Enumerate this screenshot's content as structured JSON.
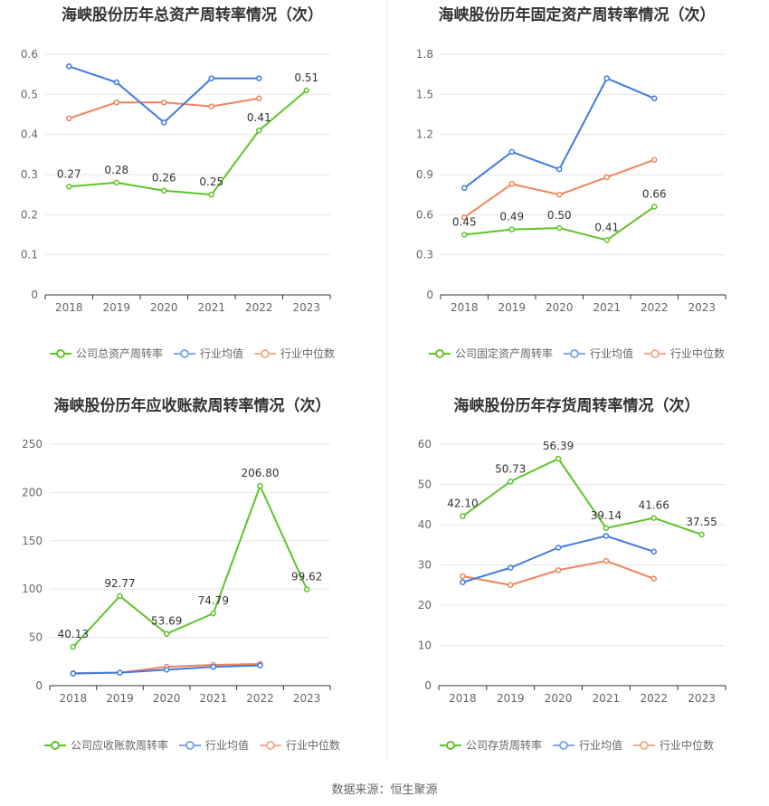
{
  "colors": {
    "company": "#5ec42a",
    "avg": "#3f7be0",
    "median": "#f0845c"
  },
  "source": "数据来源：恒生聚源",
  "chart_data": [
    {
      "type": "line",
      "title": "海峡股份历年总资产周转率情况（次）",
      "x": [
        "2018",
        "2019",
        "2020",
        "2021",
        "2022",
        "2023"
      ],
      "ylim": [
        0,
        0.6
      ],
      "yticks": [
        "0",
        "0.1",
        "0.2",
        "0.3",
        "0.4",
        "0.5",
        "0.6"
      ],
      "legend_position": "bottom",
      "series": [
        {
          "name": "公司总资产周转率",
          "role": "company",
          "values": [
            0.27,
            0.28,
            0.26,
            0.25,
            0.41,
            0.51
          ],
          "labels": [
            "0.27",
            "0.28",
            "0.26",
            "0.25",
            "0.41",
            "0.51"
          ]
        },
        {
          "name": "行业均值",
          "role": "avg",
          "values": [
            0.57,
            0.53,
            0.43,
            0.54,
            0.54,
            null
          ]
        },
        {
          "name": "行业中位数",
          "role": "median",
          "values": [
            0.44,
            0.48,
            0.48,
            0.47,
            0.49,
            null
          ]
        }
      ]
    },
    {
      "type": "line",
      "title": "海峡股份历年固定资产周转率情况（次）",
      "x": [
        "2018",
        "2019",
        "2020",
        "2021",
        "2022",
        "2023"
      ],
      "ylim": [
        0,
        1.8
      ],
      "yticks": [
        "0",
        "0.3",
        "0.6",
        "0.9",
        "1.2",
        "1.5",
        "1.8"
      ],
      "legend_position": "bottom",
      "series": [
        {
          "name": "公司固定资产周转率",
          "role": "company",
          "values": [
            0.45,
            0.49,
            0.5,
            0.41,
            0.66,
            null
          ],
          "labels": [
            "0.45",
            "0.49",
            "0.50",
            "0.41",
            "0.66",
            null
          ]
        },
        {
          "name": "行业均值",
          "role": "avg",
          "values": [
            0.8,
            1.07,
            0.94,
            1.62,
            1.47,
            null
          ]
        },
        {
          "name": "行业中位数",
          "role": "median",
          "values": [
            0.58,
            0.83,
            0.75,
            0.88,
            1.01,
            null
          ]
        }
      ]
    },
    {
      "type": "line",
      "title": "海峡股份历年应收账款周转率情况（次）",
      "x": [
        "2018",
        "2019",
        "2020",
        "2021",
        "2022",
        "2023"
      ],
      "ylim": [
        0,
        250
      ],
      "yticks": [
        "0",
        "50",
        "100",
        "150",
        "200",
        "250"
      ],
      "legend_position": "bottom",
      "series": [
        {
          "name": "公司应收账款周转率",
          "role": "company",
          "values": [
            40.13,
            92.77,
            53.69,
            74.79,
            206.8,
            99.62
          ],
          "labels": [
            "40.13",
            "92.77",
            "53.69",
            "74.79",
            "206.80",
            "99.62"
          ]
        },
        {
          "name": "行业均值",
          "role": "avg",
          "values": [
            12.5,
            13.5,
            16.5,
            19.5,
            21.0,
            null
          ]
        },
        {
          "name": "行业中位数",
          "role": "median",
          "values": [
            13.0,
            13.5,
            19.5,
            21.5,
            22.5,
            null
          ]
        }
      ]
    },
    {
      "type": "line",
      "title": "海峡股份历年存货周转率情况（次）",
      "x": [
        "2018",
        "2019",
        "2020",
        "2021",
        "2022",
        "2023"
      ],
      "ylim": [
        0,
        60
      ],
      "yticks": [
        "0",
        "10",
        "20",
        "30",
        "40",
        "50",
        "60"
      ],
      "legend_position": "bottom",
      "series": [
        {
          "name": "公司存货周转率",
          "role": "company",
          "values": [
            42.1,
            50.73,
            56.39,
            39.14,
            41.66,
            37.55
          ],
          "labels": [
            "42.10",
            "50.73",
            "56.39",
            "39.14",
            "41.66",
            "37.55"
          ]
        },
        {
          "name": "行业均值",
          "role": "avg",
          "values": [
            25.7,
            29.3,
            34.3,
            37.2,
            33.3,
            null
          ]
        },
        {
          "name": "行业中位数",
          "role": "median",
          "values": [
            27.2,
            25.0,
            28.7,
            31.0,
            26.6,
            null
          ]
        }
      ]
    }
  ]
}
